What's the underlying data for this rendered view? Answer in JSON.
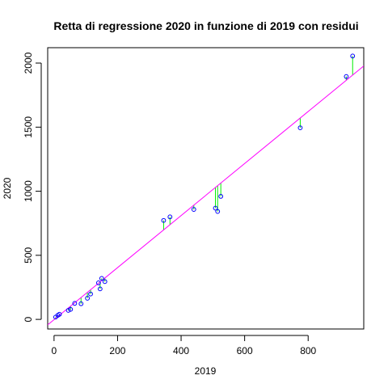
{
  "chart_data": {
    "type": "scatter",
    "title": "Retta di regressione 2020 in funzione di 2019 con residui",
    "xlabel": "2019",
    "ylabel": "2020",
    "xlim": [
      -20,
      975
    ],
    "ylim": [
      -75,
      2120
    ],
    "x_ticks": [
      0,
      200,
      400,
      600,
      800
    ],
    "y_ticks": [
      0,
      500,
      1000,
      1500,
      2000
    ],
    "grid": false,
    "regression": {
      "intercept": -2,
      "slope": 2.03
    },
    "colors": {
      "points": "#0000ff",
      "regression_line": "#ff00ff",
      "residuals": "#00ee00"
    },
    "points": [
      {
        "x": 5,
        "y": 18
      },
      {
        "x": 12,
        "y": 32
      },
      {
        "x": 17,
        "y": 40
      },
      {
        "x": 45,
        "y": 70
      },
      {
        "x": 52,
        "y": 78
      },
      {
        "x": 65,
        "y": 125
      },
      {
        "x": 85,
        "y": 122
      },
      {
        "x": 105,
        "y": 165
      },
      {
        "x": 115,
        "y": 198
      },
      {
        "x": 140,
        "y": 285
      },
      {
        "x": 145,
        "y": 238
      },
      {
        "x": 150,
        "y": 320
      },
      {
        "x": 160,
        "y": 295
      },
      {
        "x": 345,
        "y": 772
      },
      {
        "x": 365,
        "y": 800
      },
      {
        "x": 440,
        "y": 858
      },
      {
        "x": 508,
        "y": 868
      },
      {
        "x": 515,
        "y": 842
      },
      {
        "x": 525,
        "y": 960
      },
      {
        "x": 775,
        "y": 1495
      },
      {
        "x": 920,
        "y": 1895
      },
      {
        "x": 940,
        "y": 2055
      }
    ]
  }
}
